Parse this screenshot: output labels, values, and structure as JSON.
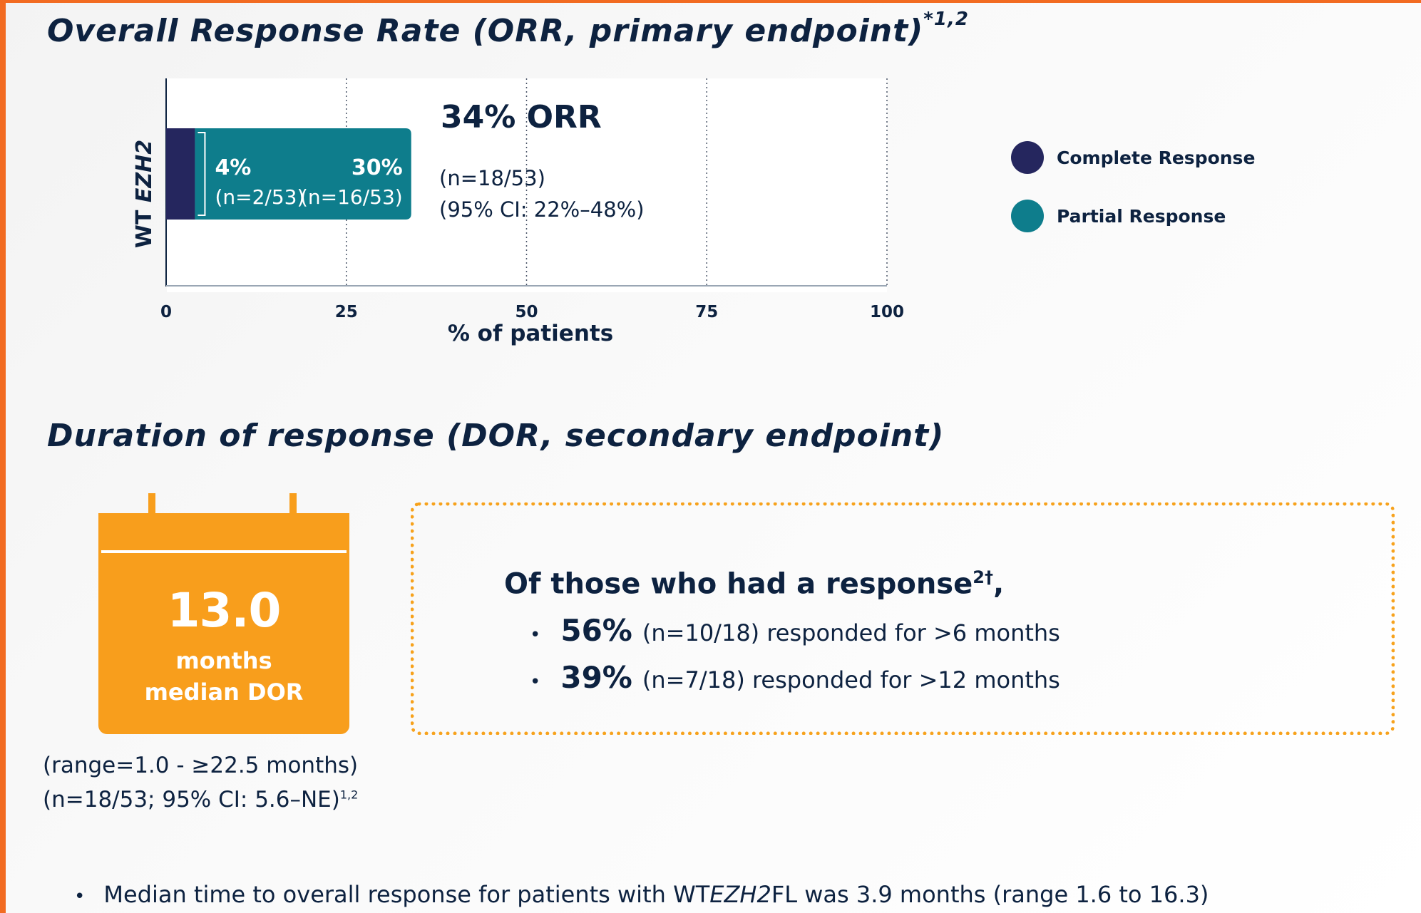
{
  "orr": {
    "title": "Overall Response Rate (ORR, primary endpoint)",
    "title_sup": "*1,2"
  },
  "chart_data": {
    "type": "bar",
    "orientation": "horizontal",
    "stacked": true,
    "categories": [
      "WT EZH2"
    ],
    "category_prefix": "WT ",
    "category_italic": "EZH2",
    "series": [
      {
        "name": "Complete Response",
        "values": [
          4
        ],
        "label": "4%",
        "sublabel": "(n=2/53)",
        "color": "#25265e"
      },
      {
        "name": "Partial Response",
        "values": [
          30
        ],
        "label": "30%",
        "sublabel": "(n=16/53)",
        "color": "#0e7d8c"
      }
    ],
    "total_label": "34% ORR",
    "total_sub1": "(n=18/53)",
    "total_sub2": "(95% CI: 22%–48%)",
    "xlim": [
      0,
      100
    ],
    "xticks": [
      0,
      25,
      50,
      75,
      100
    ],
    "xlabel": "% of patients",
    "grid": "dotted vertical",
    "legend_position": "right"
  },
  "dor": {
    "title": "Duration of response (DOR, secondary endpoint)",
    "value": "13.0",
    "unit": "months",
    "caption": "median DOR",
    "range": "(range=1.0 - ≥22.5 months)",
    "ci": "(n=18/53; 95% CI: 5.6–NE)",
    "ci_sup": "1,2",
    "calendar_color": "#f89e1c"
  },
  "responders": {
    "title": "Of those who had a response",
    "title_sup": "2†",
    "title_end": ",",
    "items": [
      {
        "bullet": "•",
        "pct": "56%",
        "text": "(n=10/18) responded for >6 months"
      },
      {
        "bullet": "•",
        "pct": "39%",
        "text": "(n=7/18) responded for >12 months"
      }
    ],
    "border_color": "#f7a21c"
  },
  "footnote": {
    "bullet": "•",
    "before": "Median time to overall response for patients with WT ",
    "italic": "EZH2",
    "after": " FL was 3.9 months (range 1.6 to 16.3)"
  }
}
